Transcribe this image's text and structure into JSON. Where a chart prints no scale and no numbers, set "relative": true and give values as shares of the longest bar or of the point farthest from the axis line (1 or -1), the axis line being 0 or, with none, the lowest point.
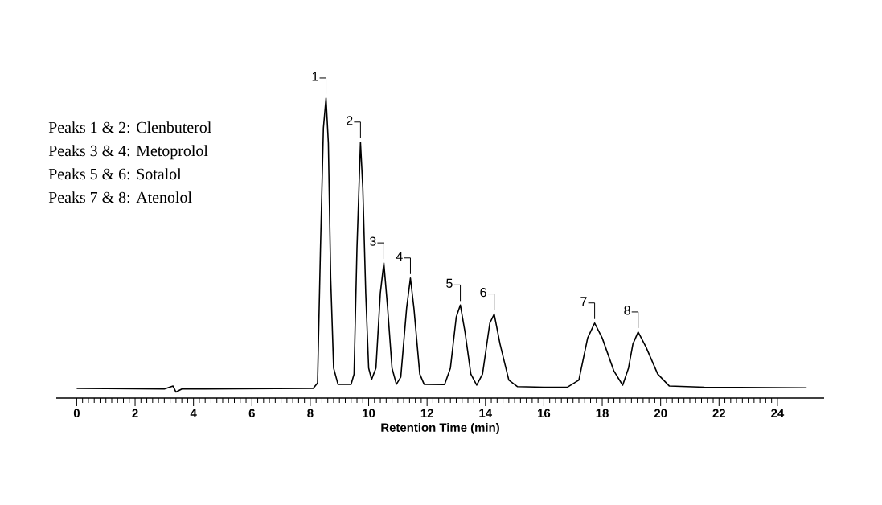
{
  "chart_data": {
    "type": "line",
    "relative": true,
    "xlabel": "Retention Time (min)",
    "color": "#000000",
    "xlim": [
      -0.7,
      25.6
    ],
    "xticks": [
      0,
      2,
      4,
      6,
      8,
      10,
      12,
      14,
      16,
      18,
      20,
      22,
      24
    ],
    "x": [
      0,
      3.0,
      3.3,
      3.4,
      3.6,
      8.1,
      8.25,
      8.35,
      8.45,
      8.54,
      8.62,
      8.7,
      8.8,
      8.95,
      9.4,
      9.5,
      9.6,
      9.72,
      9.8,
      9.9,
      10.0,
      10.1,
      10.25,
      10.4,
      10.52,
      10.65,
      10.8,
      10.95,
      11.1,
      11.3,
      11.43,
      11.55,
      11.75,
      11.9,
      12.6,
      12.8,
      13.0,
      13.14,
      13.3,
      13.5,
      13.7,
      13.9,
      14.15,
      14.3,
      14.5,
      14.8,
      15.1,
      16.0,
      16.8,
      17.2,
      17.5,
      17.74,
      18.0,
      18.4,
      18.7,
      18.9,
      19.05,
      19.23,
      19.5,
      19.9,
      20.3,
      21.5,
      25.0
    ],
    "values": [
      0.032,
      0.03,
      0.04,
      0.02,
      0.03,
      0.032,
      0.05,
      0.5,
      0.9,
      1.0,
      0.85,
      0.4,
      0.1,
      0.046,
      0.046,
      0.08,
      0.5,
      0.853,
      0.7,
      0.35,
      0.1,
      0.062,
      0.1,
      0.35,
      0.45,
      0.3,
      0.1,
      0.046,
      0.07,
      0.3,
      0.4,
      0.3,
      0.08,
      0.046,
      0.045,
      0.1,
      0.27,
      0.31,
      0.22,
      0.08,
      0.043,
      0.08,
      0.25,
      0.28,
      0.18,
      0.06,
      0.038,
      0.036,
      0.036,
      0.06,
      0.2,
      0.25,
      0.2,
      0.09,
      0.043,
      0.1,
      0.18,
      0.22,
      0.17,
      0.08,
      0.04,
      0.036,
      0.034
    ],
    "annotations": [
      "Peaks 1 & 2: Clenbuterol",
      "Peaks 3 & 4: Metoprolol",
      "Peaks 5 & 6: Sotalol",
      "Peaks 7 & 8: Atenolol",
      {
        "text": "1",
        "x": 8.54,
        "y": 1.0
      },
      {
        "text": "2",
        "x": 9.72,
        "y": 0.853
      },
      {
        "text": "3",
        "x": 10.52,
        "y": 0.45
      },
      {
        "text": "4",
        "x": 11.43,
        "y": 0.4
      },
      {
        "text": "5",
        "x": 13.14,
        "y": 0.31
      },
      {
        "text": "6",
        "x": 14.3,
        "y": 0.28
      },
      {
        "text": "7",
        "x": 17.74,
        "y": 0.25
      },
      {
        "text": "8",
        "x": 19.23,
        "y": 0.22
      }
    ]
  }
}
